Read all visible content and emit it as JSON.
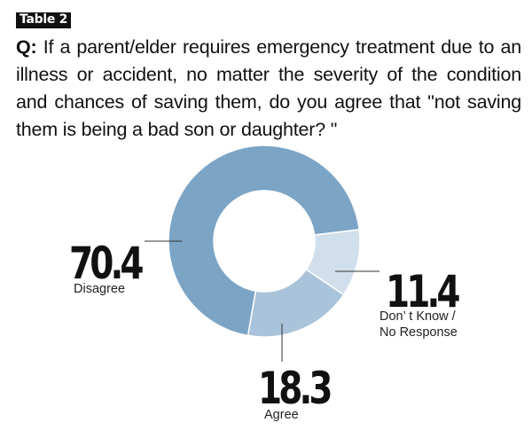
{
  "header": {
    "tag": "Table 2",
    "question_prefix": "Q:",
    "question_text": " If a parent/elder requires emergency treatment due to an illness or accident, no matter the severity of the condition and chances of saving them, do you agree that \"not saving them is being a bad son or daughter? \""
  },
  "colors": {
    "disagree": "#7ba4c5",
    "agree": "#a9c3da",
    "dont_know": "#d1dfec",
    "separator": "#ffffff",
    "leader": "#333333"
  },
  "chart_data": {
    "type": "pie",
    "donut": true,
    "slices": [
      {
        "label": "Disagree",
        "value": 70.4,
        "display": "70.4"
      },
      {
        "label": "Agree",
        "value": 18.3,
        "display": "18.3"
      },
      {
        "label": "Don’t Know / No Response",
        "label_lines": [
          "Don’ t Know /",
          "No Response"
        ],
        "value": 11.4,
        "display": "11.4"
      }
    ]
  }
}
